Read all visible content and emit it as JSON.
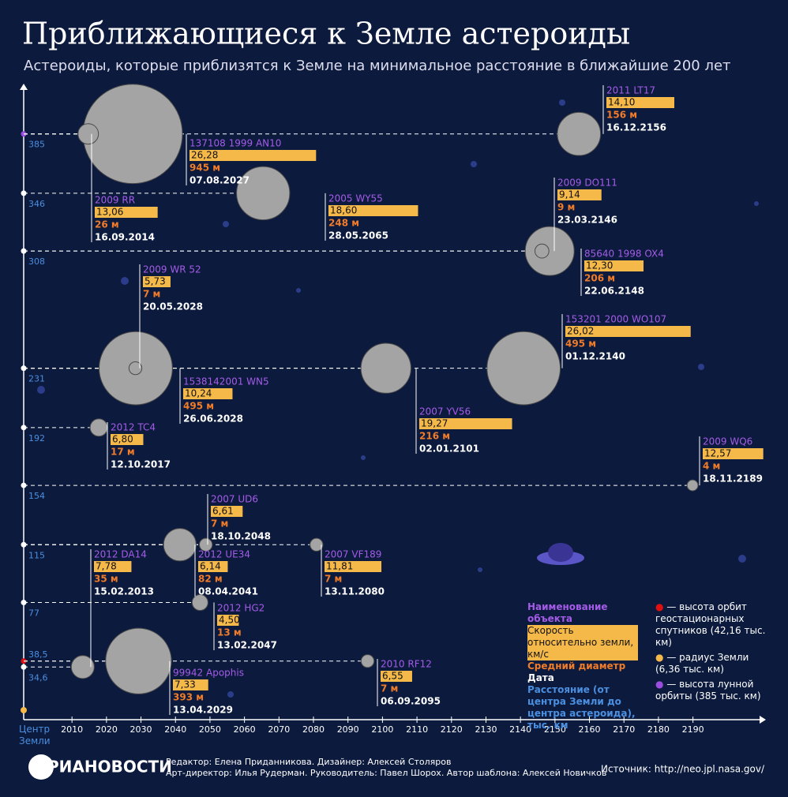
{
  "chart_data": {
    "type": "bubble",
    "title": "Приближающиеся к Земле астероиды",
    "subtitle": "Астероиды, которые приблизятся к Земле на минимальное расстояние в ближайшие 200 лет",
    "names": [
      "2011 LT17",
      "137108 1999 AN10",
      "2009 RR",
      "2005 WY55",
      "2009 DO111",
      "85640 1998 OX4",
      "2009 WR 52",
      "1538142001 WN5",
      "2007 YV56",
      "153201 2000 WO107",
      "2012 TC4",
      "2009 WQ6",
      "2007 UD6",
      "2012 UE34",
      "2007 VF189",
      "2012 DA14",
      "2012 HG2",
      "99942 Apophis",
      "2010 RF12"
    ],
    "x": [
      "16.12.2156",
      "07.08.2027",
      "16.09.2014",
      "28.05.2065",
      "23.03.2146",
      "22.06.2148",
      "20.05.2028",
      "26.06.2028",
      "02.01.2101",
      "01.12.2140",
      "12.10.2017",
      "18.11.2189",
      "18.10.2048",
      "08.04.2041",
      "13.11.2080",
      "15.02.2013",
      "13.02.2047",
      "13.04.2029",
      "06.09.2095"
    ],
    "values": [
      385,
      385,
      385,
      346,
      308,
      308,
      231,
      231,
      231,
      231,
      192,
      154,
      115,
      115,
      115,
      34.6,
      77,
      38.5,
      38.5
    ],
    "sizes": [
      156,
      945,
      26,
      248,
      9,
      206,
      7,
      495,
      216,
      495,
      17,
      4,
      7,
      82,
      7,
      35,
      13,
      393,
      7
    ],
    "size_labels": [
      "156 м",
      "945 м",
      "26 м",
      "248 м",
      "9 м",
      "206 м",
      "7 м",
      "495 м",
      "216 м",
      "495 м",
      "17 м",
      "4 м",
      "7 м",
      "82 м",
      "7 м",
      "35 м",
      "13 м",
      "393 м",
      "7 м"
    ],
    "speeds": [
      14.1,
      26.28,
      13.06,
      18.6,
      9.14,
      12.3,
      5.73,
      10.24,
      19.27,
      26.02,
      6.8,
      12.57,
      6.61,
      6.14,
      11.81,
      7.78,
      4.5,
      7.33,
      6.55
    ],
    "speed_labels": [
      "14,10",
      "26,28",
      "13,06",
      "18,60",
      "9,14",
      "12,30",
      "5,73",
      "10,24",
      "19,27",
      "26,02",
      "6,80",
      "12,57",
      "6,61",
      "6,14",
      "11,81",
      "7,78",
      "4,50",
      "7,33",
      "6,55"
    ],
    "xlim": [
      1996,
      2210
    ],
    "ylim": [
      0,
      417
    ],
    "xticks": [
      2010,
      2020,
      2030,
      2040,
      2050,
      2060,
      2070,
      2080,
      2090,
      2100,
      2110,
      2120,
      2130,
      2140,
      2150,
      2160,
      2170,
      2180,
      2190
    ],
    "yticks": [
      {
        "value": 34.6,
        "label": "34,6"
      },
      {
        "value": 38.5,
        "label": "38,5"
      },
      77,
      115,
      154,
      192,
      231,
      308,
      346,
      385
    ],
    "origin_label": "Центр Земли",
    "legend": {
      "name": "Наименование объекта",
      "speed": "Скорость относительно земли, км/с",
      "size": "Средний диаметр",
      "date": "Дата",
      "distance": "Расстояние (от центра Земли до центра астероида), тыс. км"
    },
    "notes": [
      "— высота орбит геостационарных спутников (42,16 тыс. км)",
      "— радиус Земли (6,36 тыс. км)",
      "— высота лунной орбиты (385 тыс. км)"
    ]
  },
  "footer": {
    "logo": "РИАНОВОСТИ",
    "credits_1": "Редактор: Елена Приданникова. Дизайнер: Алексей Столяров",
    "credits_2": "Арт-директор: Илья Рудерман. Руководитель: Павел Шорох. Автор шаблона: Алексей Новичков",
    "source": "Источник: http://neo.jpl.nasa.gov/"
  }
}
